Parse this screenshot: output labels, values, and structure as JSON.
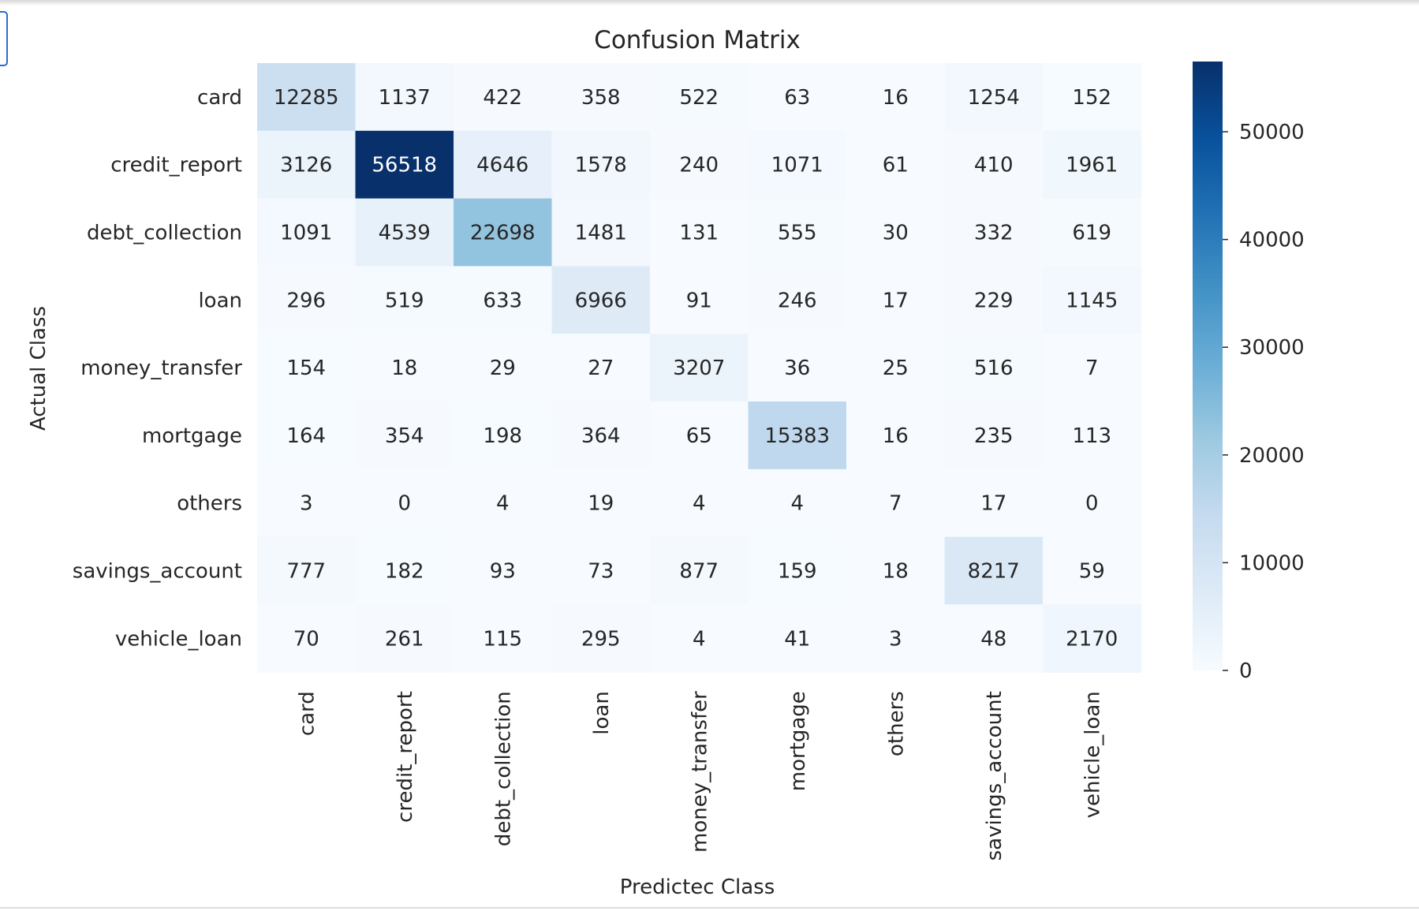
{
  "chart_data": {
    "type": "heatmap",
    "title": "Confusion Matrix",
    "xlabel": "Predictec Class",
    "ylabel": "Actual Class",
    "x_categories": [
      "card",
      "credit_report",
      "debt_collection",
      "loan",
      "money_transfer",
      "mortgage",
      "others",
      "savings_account",
      "vehicle_loan"
    ],
    "y_categories": [
      "card",
      "credit_report",
      "debt_collection",
      "loan",
      "money_transfer",
      "mortgage",
      "others",
      "savings_account",
      "vehicle_loan"
    ],
    "values": [
      [
        12285,
        1137,
        422,
        358,
        522,
        63,
        16,
        1254,
        152
      ],
      [
        3126,
        56518,
        4646,
        1578,
        240,
        1071,
        61,
        410,
        1961
      ],
      [
        1091,
        4539,
        22698,
        1481,
        131,
        555,
        30,
        332,
        619
      ],
      [
        296,
        519,
        633,
        6966,
        91,
        246,
        17,
        229,
        1145
      ],
      [
        154,
        18,
        29,
        27,
        3207,
        36,
        25,
        516,
        7
      ],
      [
        164,
        354,
        198,
        364,
        65,
        15383,
        16,
        235,
        113
      ],
      [
        3,
        0,
        4,
        19,
        4,
        4,
        7,
        17,
        0
      ],
      [
        777,
        182,
        93,
        73,
        877,
        159,
        18,
        8217,
        59
      ],
      [
        70,
        261,
        115,
        295,
        4,
        41,
        3,
        48,
        2170
      ]
    ],
    "colormap": "Blues",
    "colorbar": {
      "ticks": [
        0,
        10000,
        20000,
        30000,
        40000,
        50000
      ],
      "range": [
        0,
        56518
      ]
    },
    "colors": {
      "low": "#f7fbff",
      "high": "#08306b",
      "text_dark": "#262626",
      "text_light": "#ffffff"
    }
  }
}
